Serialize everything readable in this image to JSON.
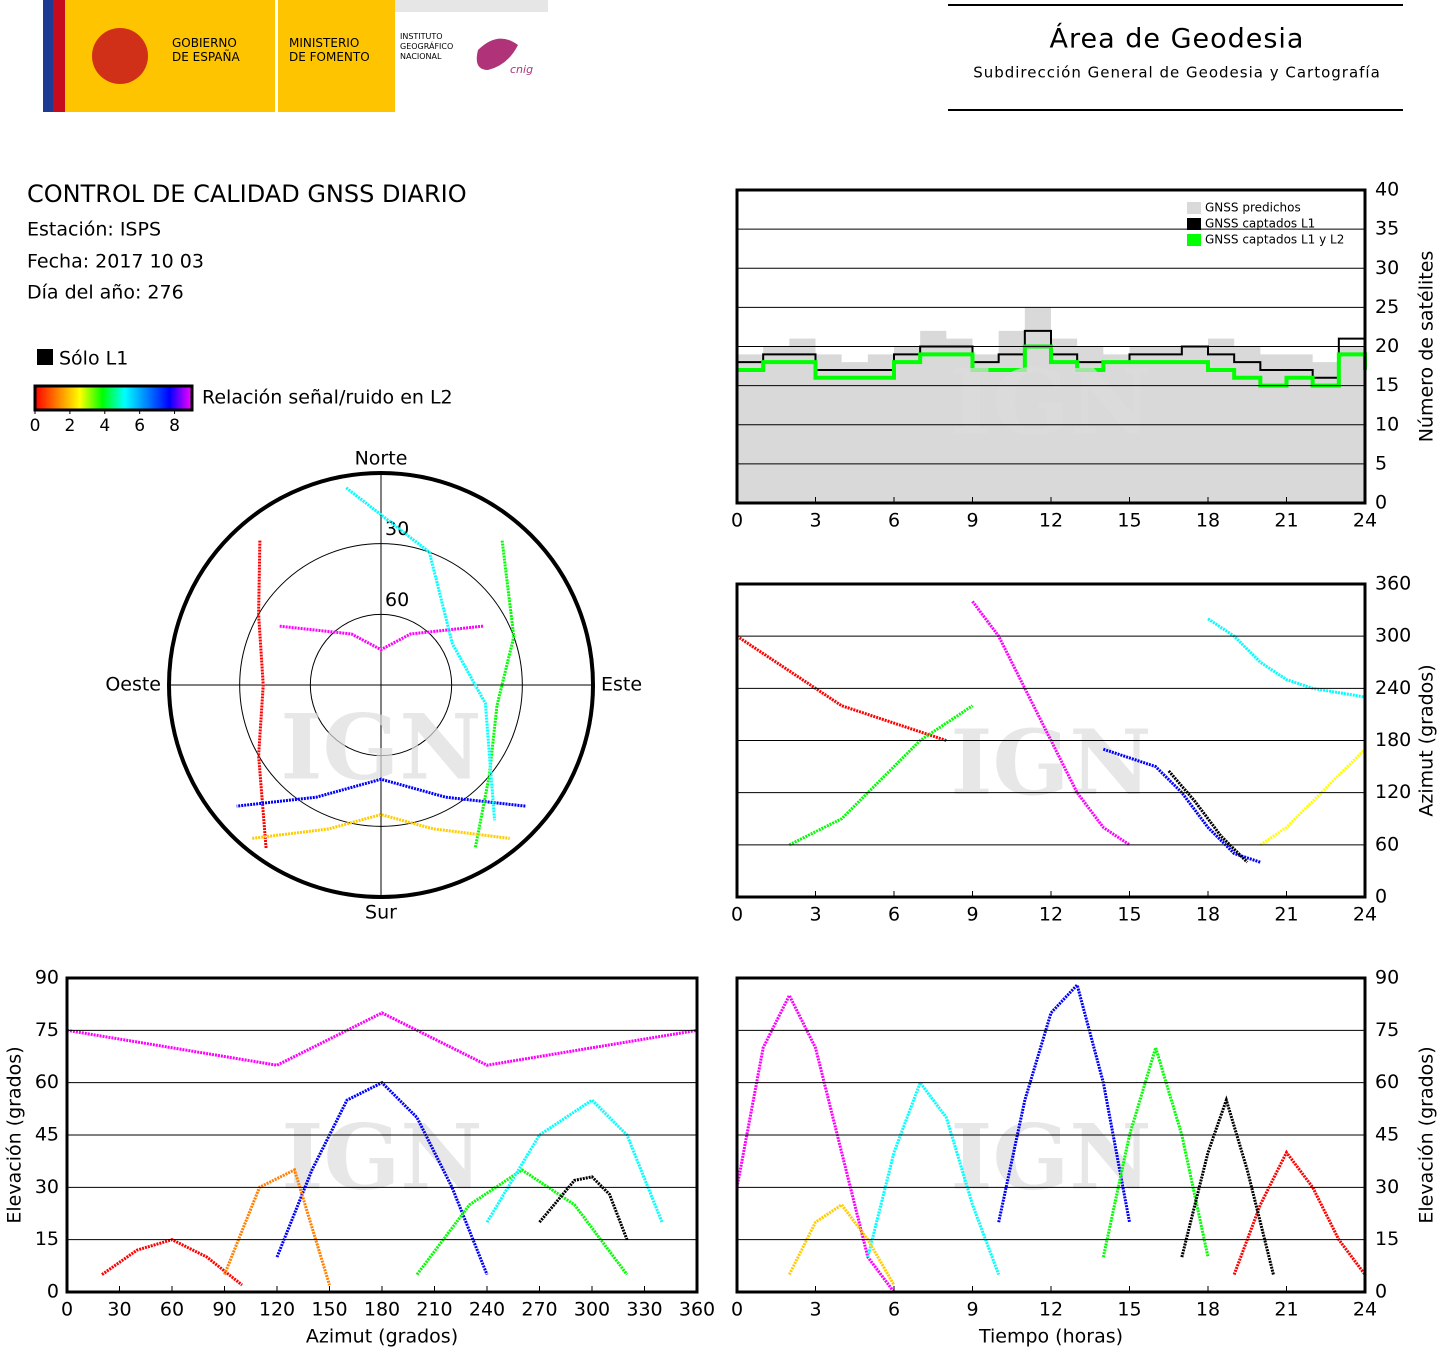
{
  "header": {
    "logos": [
      [
        "GOBIERNO",
        "DE ESPAÑA"
      ],
      [
        "MINISTERIO",
        "DE FOMENTO"
      ],
      [
        "INSTITUTO",
        "GEOGRÁFICO",
        "NACIONAL"
      ]
    ],
    "logo_mark": "cnig",
    "area": "Área de Geodesia",
    "subdireccion": "Subdirección General de Geodesia y Cartografía"
  },
  "info": {
    "title": "CONTROL DE CALIDAD GNSS DIARIO",
    "lines": [
      "Estación: ISPS",
      "Fecha: 2017 10 03",
      "Día del año: 276"
    ],
    "only_l1": "Sólo L1",
    "colorbar_label": "Relación señal/ruido en L2",
    "colorbar_ticks": [
      0,
      2,
      4,
      6,
      8
    ],
    "colorbar_lim": [
      0,
      9
    ],
    "colorbar_colors": [
      "#ff0000",
      "#ff8000",
      "#ffff00",
      "#00ff00",
      "#00ffff",
      "#0080ff",
      "#0000ff",
      "#ff00ff"
    ]
  },
  "chart_data": [
    {
      "type": "step",
      "watermark": "IGN",
      "ylabel": "Número de satélites",
      "xlim": [
        0,
        24
      ],
      "ylim": [
        0,
        40
      ],
      "xticks": [
        0,
        3,
        6,
        9,
        12,
        15,
        18,
        21,
        24
      ],
      "yticks": [
        0,
        5,
        10,
        15,
        20,
        25,
        30,
        35,
        40
      ],
      "grid": true,
      "legend": "upper right",
      "x": [
        0,
        1,
        2,
        3,
        4,
        5,
        6,
        7,
        8,
        9,
        10,
        11,
        12,
        13,
        14,
        15,
        16,
        17,
        18,
        19,
        20,
        21,
        22,
        23,
        24
      ],
      "series": [
        {
          "name": "GNSS predichos",
          "color": "#d9d9d9",
          "values": [
            19,
            20,
            21,
            19,
            18,
            19,
            20,
            22,
            21,
            19,
            22,
            25,
            21,
            20,
            19,
            20,
            20,
            20,
            21,
            20,
            19,
            19,
            18,
            20,
            19
          ]
        },
        {
          "name": "GNSS captados L1",
          "color": "#000000",
          "values": [
            18,
            19,
            19,
            17,
            17,
            17,
            19,
            20,
            20,
            18,
            19,
            22,
            19,
            18,
            18,
            19,
            19,
            20,
            19,
            18,
            17,
            17,
            16,
            21,
            18
          ]
        },
        {
          "name": "GNSS captados L1 y L2",
          "color": "#00ff00",
          "values": [
            17,
            18,
            18,
            16,
            16,
            16,
            18,
            19,
            19,
            17,
            17,
            20,
            18,
            17,
            18,
            18,
            18,
            18,
            17,
            16,
            15,
            16,
            15,
            19,
            17
          ]
        }
      ]
    },
    {
      "type": "track",
      "watermark": "IGN",
      "ylabel": "Azimut (grados)",
      "xlim": [
        0,
        24
      ],
      "ylim": [
        0,
        360
      ],
      "xticks": [
        0,
        3,
        6,
        9,
        12,
        15,
        18,
        21,
        24
      ],
      "yticks": [
        0,
        60,
        120,
        180,
        240,
        300,
        360
      ],
      "grid": true,
      "series": [
        {
          "color": "#ff0000",
          "x": [
            0,
            2,
            4,
            6,
            8
          ],
          "values": [
            300,
            260,
            220,
            200,
            180
          ]
        },
        {
          "color": "#ff00ff",
          "x": [
            9,
            10,
            11,
            12,
            13,
            14,
            15
          ],
          "values": [
            340,
            300,
            240,
            180,
            120,
            80,
            60
          ]
        },
        {
          "color": "#0000ff",
          "x": [
            14,
            16,
            17,
            18,
            19,
            20
          ],
          "values": [
            170,
            150,
            120,
            80,
            50,
            40
          ]
        },
        {
          "color": "#00ff00",
          "x": [
            2,
            4,
            5,
            6,
            7,
            9
          ],
          "values": [
            60,
            90,
            120,
            150,
            180,
            220
          ]
        },
        {
          "color": "#00ffff",
          "x": [
            18,
            19,
            20,
            21,
            22,
            24
          ],
          "values": [
            320,
            300,
            270,
            250,
            240,
            230
          ]
        },
        {
          "color": "#ffff00",
          "x": [
            20,
            21,
            22,
            23,
            24
          ],
          "values": [
            60,
            80,
            110,
            140,
            170
          ]
        },
        {
          "color": "#000000",
          "x": [
            16.5,
            17.5,
            18.5,
            19.5
          ],
          "values": [
            145,
            110,
            70,
            40
          ]
        }
      ]
    },
    {
      "type": "polar",
      "watermark": "IGN",
      "north": "Norte",
      "south": "Sur",
      "east": "Este",
      "west": "Oeste",
      "rlim": [
        90,
        0
      ],
      "rticks": [
        30,
        60
      ],
      "series": [
        {
          "color": "#ff0000",
          "azimuth": [
            320,
            300,
            270,
            240,
            215
          ],
          "elevation": [
            10,
            30,
            40,
            30,
            5
          ]
        },
        {
          "color": "#ff00ff",
          "azimuth": [
            60,
            30,
            0,
            330,
            300
          ],
          "elevation": [
            40,
            65,
            75,
            65,
            40
          ]
        },
        {
          "color": "#0000ff",
          "azimuth": [
            130,
            150,
            180,
            210,
            230
          ],
          "elevation": [
            10,
            35,
            50,
            35,
            10
          ]
        },
        {
          "color": "#00ff00",
          "azimuth": [
            40,
            70,
            100,
            130,
            150
          ],
          "elevation": [
            10,
            30,
            40,
            30,
            10
          ]
        },
        {
          "color": "#00ffff",
          "azimuth": [
            350,
            20,
            60,
            100,
            140
          ],
          "elevation": [
            5,
            30,
            55,
            45,
            15
          ]
        },
        {
          "color": "#ffcc00",
          "azimuth": [
            220,
            200,
            180,
            160,
            140
          ],
          "elevation": [
            5,
            25,
            35,
            25,
            5
          ]
        }
      ]
    },
    {
      "type": "track",
      "watermark": "IGN",
      "xlabel": "Azimut (grados)",
      "ylabel": "Elevación (grados)",
      "xlim": [
        0,
        360
      ],
      "ylim": [
        0,
        90
      ],
      "xticks": [
        0,
        30,
        60,
        90,
        120,
        150,
        180,
        210,
        240,
        270,
        300,
        330,
        360
      ],
      "yticks": [
        0,
        15,
        30,
        45,
        60,
        75,
        90
      ],
      "grid": true,
      "series": [
        {
          "color": "#ff0000",
          "x": [
            20,
            40,
            60,
            80,
            100
          ],
          "values": [
            5,
            12,
            15,
            10,
            2
          ]
        },
        {
          "color": "#ff00ff",
          "x": [
            0,
            60,
            120,
            180,
            240,
            300,
            360
          ],
          "values": [
            75,
            70,
            65,
            80,
            65,
            70,
            75
          ]
        },
        {
          "color": "#0000ff",
          "x": [
            120,
            140,
            160,
            180,
            200,
            220,
            240
          ],
          "values": [
            10,
            35,
            55,
            60,
            50,
            30,
            5
          ]
        },
        {
          "color": "#00ff00",
          "x": [
            200,
            230,
            260,
            290,
            320
          ],
          "values": [
            5,
            25,
            35,
            25,
            5
          ]
        },
        {
          "color": "#00ffff",
          "x": [
            240,
            270,
            300,
            320,
            340
          ],
          "values": [
            20,
            45,
            55,
            45,
            20
          ]
        },
        {
          "color": "#ff8000",
          "x": [
            90,
            110,
            130,
            150
          ],
          "values": [
            5,
            30,
            35,
            2
          ]
        },
        {
          "color": "#000000",
          "x": [
            270,
            290,
            300,
            310,
            320
          ],
          "values": [
            20,
            32,
            33,
            28,
            15
          ]
        }
      ]
    },
    {
      "type": "track",
      "watermark": "IGN",
      "xlabel": "Tiempo (horas)",
      "ylabel": "Elevación (grados)",
      "xlim": [
        0,
        24
      ],
      "ylim": [
        0,
        90
      ],
      "xticks": [
        0,
        3,
        6,
        9,
        12,
        15,
        18,
        21,
        24
      ],
      "yticks": [
        0,
        15,
        30,
        45,
        60,
        75,
        90
      ],
      "grid": true,
      "series": [
        {
          "color": "#ff00ff",
          "x": [
            0,
            1,
            2,
            3,
            4,
            5,
            6
          ],
          "values": [
            30,
            70,
            85,
            70,
            40,
            10,
            0
          ]
        },
        {
          "color": "#0000ff",
          "x": [
            10,
            11,
            12,
            13,
            14,
            15
          ],
          "values": [
            20,
            55,
            80,
            88,
            60,
            20
          ]
        },
        {
          "color": "#00ffff",
          "x": [
            5,
            6,
            7,
            8,
            9,
            10
          ],
          "values": [
            10,
            40,
            60,
            50,
            25,
            5
          ]
        },
        {
          "color": "#00ff00",
          "x": [
            14,
            15,
            16,
            17,
            18
          ],
          "values": [
            10,
            45,
            70,
            45,
            10
          ]
        },
        {
          "color": "#ff0000",
          "x": [
            19,
            20,
            21,
            22,
            23,
            24
          ],
          "values": [
            5,
            25,
            40,
            30,
            15,
            5
          ]
        },
        {
          "color": "#000000",
          "x": [
            17,
            18,
            18.7,
            19.5,
            20.5
          ],
          "values": [
            10,
            40,
            55,
            35,
            5
          ]
        },
        {
          "color": "#ffcc00",
          "x": [
            2,
            3,
            4,
            5,
            6
          ],
          "values": [
            5,
            20,
            25,
            15,
            2
          ]
        }
      ]
    }
  ]
}
